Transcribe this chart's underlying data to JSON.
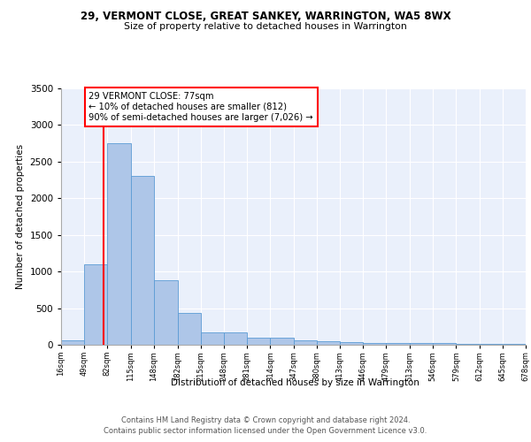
{
  "title": "29, VERMONT CLOSE, GREAT SANKEY, WARRINGTON, WA5 8WX",
  "subtitle": "Size of property relative to detached houses in Warrington",
  "xlabel": "Distribution of detached houses by size in Warrington",
  "ylabel": "Number of detached properties",
  "bar_edges": [
    16,
    49,
    82,
    115,
    148,
    182,
    215,
    248,
    281,
    314,
    347,
    380,
    413,
    446,
    479,
    513,
    546,
    579,
    612,
    645,
    678
  ],
  "bar_heights": [
    60,
    1100,
    2750,
    2300,
    880,
    430,
    170,
    170,
    95,
    95,
    60,
    50,
    38,
    30,
    25,
    25,
    20,
    18,
    10,
    8
  ],
  "bar_color": "#aec6e8",
  "bar_edgecolor": "#5b9bd5",
  "vline_x": 77,
  "vline_color": "red",
  "annotation_text": "29 VERMONT CLOSE: 77sqm\n← 10% of detached houses are smaller (812)\n90% of semi-detached houses are larger (7,026) →",
  "annotation_box_color": "white",
  "annotation_box_edgecolor": "red",
  "ylim": [
    0,
    3500
  ],
  "xlim": [
    16,
    678
  ],
  "bg_color": "#eaf0fb",
  "footer_line1": "Contains HM Land Registry data © Crown copyright and database right 2024.",
  "footer_line2": "Contains public sector information licensed under the Open Government Licence v3.0.",
  "tick_labels": [
    "16sqm",
    "49sqm",
    "82sqm",
    "115sqm",
    "148sqm",
    "182sqm",
    "215sqm",
    "248sqm",
    "281sqm",
    "314sqm",
    "347sqm",
    "380sqm",
    "413sqm",
    "446sqm",
    "479sqm",
    "513sqm",
    "546sqm",
    "579sqm",
    "612sqm",
    "645sqm",
    "678sqm"
  ]
}
